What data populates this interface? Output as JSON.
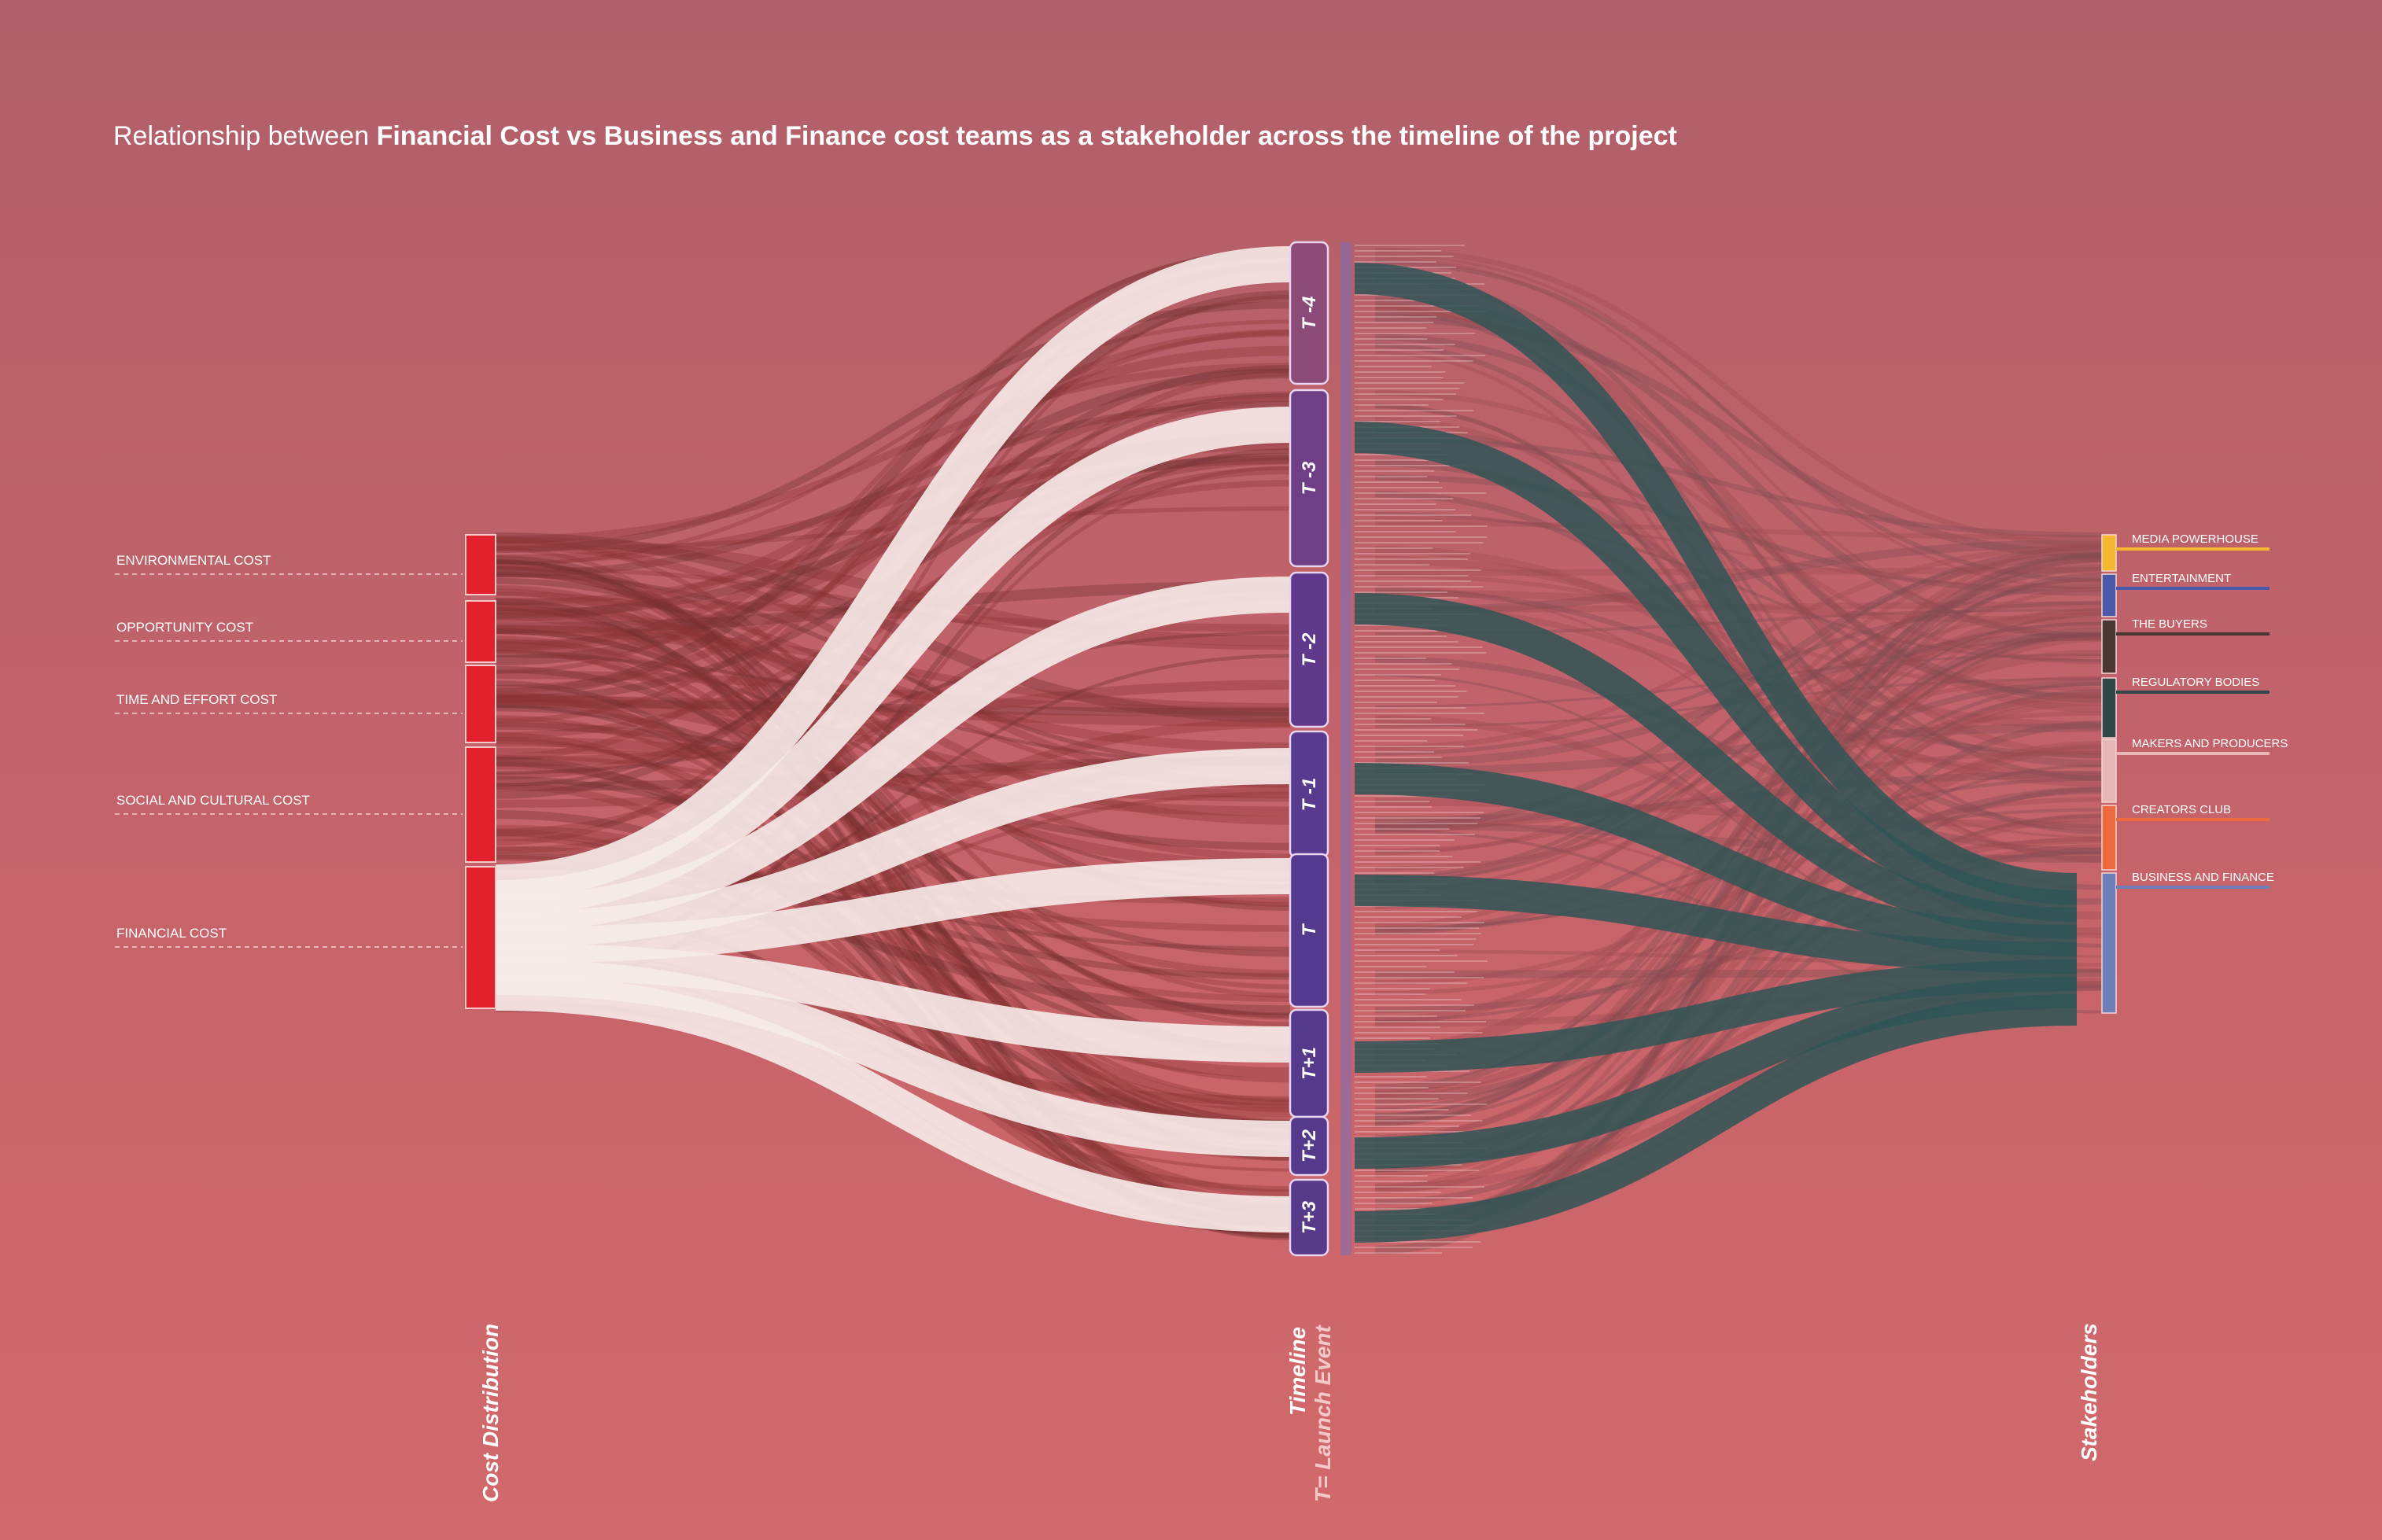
{
  "title": {
    "prefix": "Relationship between ",
    "emphasis": "Financial Cost vs Business and Finance cost teams as a stakeholder across the timeline of the project"
  },
  "columns": {
    "left": "Cost Distribution",
    "middle": "Timeline",
    "middle_sub": "T= Launch Event",
    "right": "Stakeholders"
  },
  "costs": [
    {
      "id": "env",
      "label": "ENVIRONMENTAL COST",
      "color": "#e3212d"
    },
    {
      "id": "opp",
      "label": "OPPORTUNITY COST",
      "color": "#e3212d"
    },
    {
      "id": "time",
      "label": "TIME AND EFFORT COST",
      "color": "#e3212d"
    },
    {
      "id": "soc",
      "label": "SOCIAL AND CULTURAL COST",
      "color": "#e3212d"
    },
    {
      "id": "fin",
      "label": "FINANCIAL COST",
      "color": "#e3212d"
    }
  ],
  "timeline": [
    {
      "id": "T-4",
      "label": "T -4",
      "color": "#8b4a78"
    },
    {
      "id": "T-3",
      "label": "T -3",
      "color": "#6e3f87"
    },
    {
      "id": "T-2",
      "label": "T -2",
      "color": "#5f3a8c"
    },
    {
      "id": "T-1",
      "label": "T -1",
      "color": "#583a8f"
    },
    {
      "id": "T",
      "label": "T",
      "color": "#533a8f"
    },
    {
      "id": "T+1",
      "label": "T+1",
      "color": "#553a8c"
    },
    {
      "id": "T+2",
      "label": "T+2",
      "color": "#553a8c"
    },
    {
      "id": "T+3",
      "label": "T+3",
      "color": "#573a89"
    }
  ],
  "stakeholders": [
    {
      "id": "media",
      "label": "MEDIA POWERHOUSE",
      "color": "#f5b82e"
    },
    {
      "id": "ent",
      "label": "ENTERTAINMENT",
      "color": "#4b5aa8"
    },
    {
      "id": "buy",
      "label": "THE BUYERS",
      "color": "#4a3633"
    },
    {
      "id": "reg",
      "label": "REGULATORY BODIES",
      "color": "#2f4748"
    },
    {
      "id": "mak",
      "label": "MAKERS AND PRODUCERS",
      "color": "#e6b7b5"
    },
    {
      "id": "cre",
      "label": "CREATORS CLUB",
      "color": "#ec6a3c"
    },
    {
      "id": "bus",
      "label": "BUSINESS AND FINANCE",
      "color": "#6d7fb8"
    }
  ],
  "highlight": {
    "cost": "FINANCIAL COST",
    "stakeholder": "BUSINESS AND FINANCE"
  },
  "colors": {
    "highlight_left": "#f6ebe9",
    "highlight_right": "#2f5556",
    "background_flow": "#8a3535"
  }
}
